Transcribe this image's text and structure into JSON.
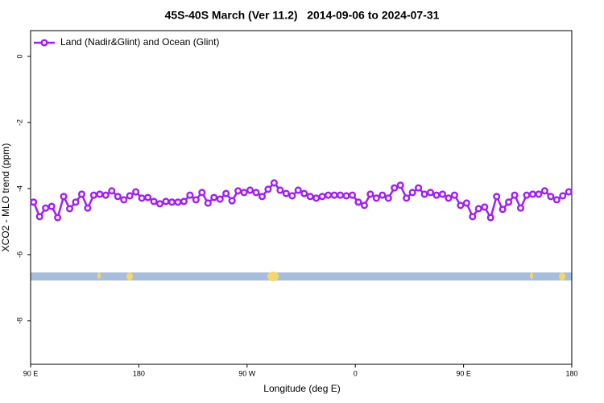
{
  "chart_data": {
    "type": "line",
    "title": "45S-40S March (Ver 11.2)   2014-09-06 to 2024-07-31",
    "xlabel": "Longitude (deg E)",
    "ylabel": "XCO2 - MLO trend (ppm)",
    "xlim": [
      90,
      540
    ],
    "ylim": [
      -9.32,
      0.78
    ],
    "xticks": [
      {
        "value": 90,
        "label": "90 E"
      },
      180,
      {
        "value": 270,
        "label": "90 W"
      },
      {
        "value": 360,
        "label": "0"
      },
      {
        "value": 450,
        "label": "90 E"
      },
      {
        "value": 540,
        "label": "180"
      }
    ],
    "yticks": [
      0,
      -2,
      -4,
      -6,
      -8
    ],
    "grid": false,
    "legend": "top-left",
    "x": [
      92.5,
      97.5,
      102.5,
      107.5,
      112.5,
      117.5,
      122.5,
      127.5,
      132.5,
      137.5,
      142.5,
      147.5,
      152.5,
      157.5,
      162.5,
      167.5,
      172.5,
      177.5,
      182.5,
      187.5,
      192.5,
      197.5,
      202.5,
      207.5,
      212.5,
      217.5,
      222.5,
      227.5,
      232.5,
      237.5,
      242.5,
      247.5,
      252.5,
      257.5,
      262.5,
      267.5,
      272.5,
      277.5,
      282.5,
      287.5,
      292.5,
      297.5,
      302.5,
      307.5,
      312.5,
      317.5,
      322.5,
      327.5,
      332.5,
      337.5,
      342.5,
      347.5,
      352.5,
      357.5,
      362.5,
      367.5,
      372.5,
      377.5,
      382.5,
      387.5,
      392.5,
      397.5,
      402.5,
      407.5,
      412.5,
      417.5,
      422.5,
      427.5,
      432.5,
      437.5,
      442.5,
      447.5,
      452.5,
      457.5,
      462.5,
      467.5,
      472.5,
      477.5,
      482.5,
      487.5,
      492.5,
      497.5,
      502.5,
      507.5,
      512.5,
      517.5,
      522.5,
      527.5,
      532.5,
      537.5
    ],
    "series": [
      {
        "name": "Land (Nadir&Glint) and Ocean (Glint)",
        "color": "#a020f0",
        "values": [
          -4.41,
          -4.85,
          -4.59,
          -4.54,
          -4.88,
          -4.24,
          -4.61,
          -4.41,
          -4.17,
          -4.59,
          -4.2,
          -4.17,
          -4.2,
          -4.07,
          -4.24,
          -4.34,
          -4.22,
          -4.1,
          -4.29,
          -4.27,
          -4.39,
          -4.46,
          -4.39,
          -4.41,
          -4.41,
          -4.39,
          -4.2,
          -4.34,
          -4.12,
          -4.44,
          -4.27,
          -4.32,
          -4.15,
          -4.37,
          -4.07,
          -4.12,
          -4.05,
          -4.12,
          -4.24,
          -4.02,
          -3.83,
          -4.05,
          -4.15,
          -4.22,
          -4.05,
          -4.15,
          -4.24,
          -4.29,
          -4.24,
          -4.2,
          -4.2,
          -4.2,
          -4.22,
          -4.2,
          -4.41,
          -4.51,
          -4.17,
          -4.29,
          -4.2,
          -4.29,
          -3.98,
          -3.9,
          -4.29,
          -4.12,
          -3.98,
          -4.17,
          -4.12,
          -4.2,
          -4.17,
          -4.29,
          -4.2,
          -4.51,
          -4.44,
          -4.85,
          -4.61,
          -4.56,
          -4.88,
          -4.24,
          -4.63,
          -4.41,
          -4.2,
          -4.59,
          -4.2,
          -4.17,
          -4.17,
          -4.07,
          -4.24,
          -4.34,
          -4.22,
          -4.1
        ]
      }
    ]
  }
}
